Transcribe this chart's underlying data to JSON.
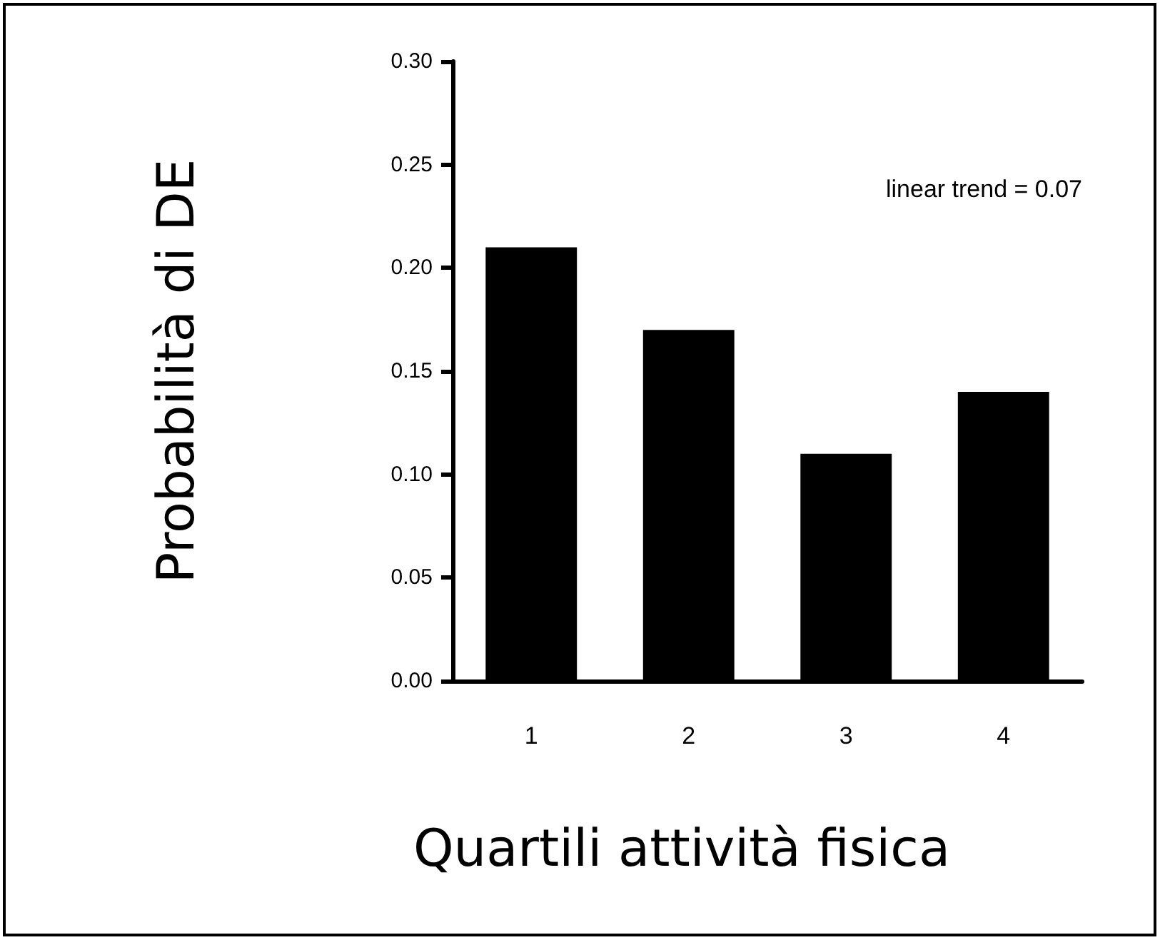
{
  "chart_data": {
    "type": "bar",
    "xlabel": "Quartili attività fisica",
    "ylabel": "Probabilità di DE",
    "categories": [
      "1",
      "2",
      "3",
      "4"
    ],
    "values": [
      0.21,
      0.17,
      0.11,
      0.14
    ],
    "color": "#000000",
    "ylim": [
      0,
      0.3
    ],
    "yticks": [
      {
        "value": 0,
        "label": "0.00"
      },
      {
        "value": 0.05,
        "label": "0.05"
      },
      {
        "value": 0.1,
        "label": "0.10"
      },
      {
        "value": 0.15,
        "label": "0.15"
      },
      {
        "value": 0.2,
        "label": "0.20"
      },
      {
        "value": 0.25,
        "label": "0.25"
      },
      {
        "value": 0.3,
        "label": "0.30"
      }
    ],
    "annotations": [
      "linear trend = 0.07"
    ]
  }
}
